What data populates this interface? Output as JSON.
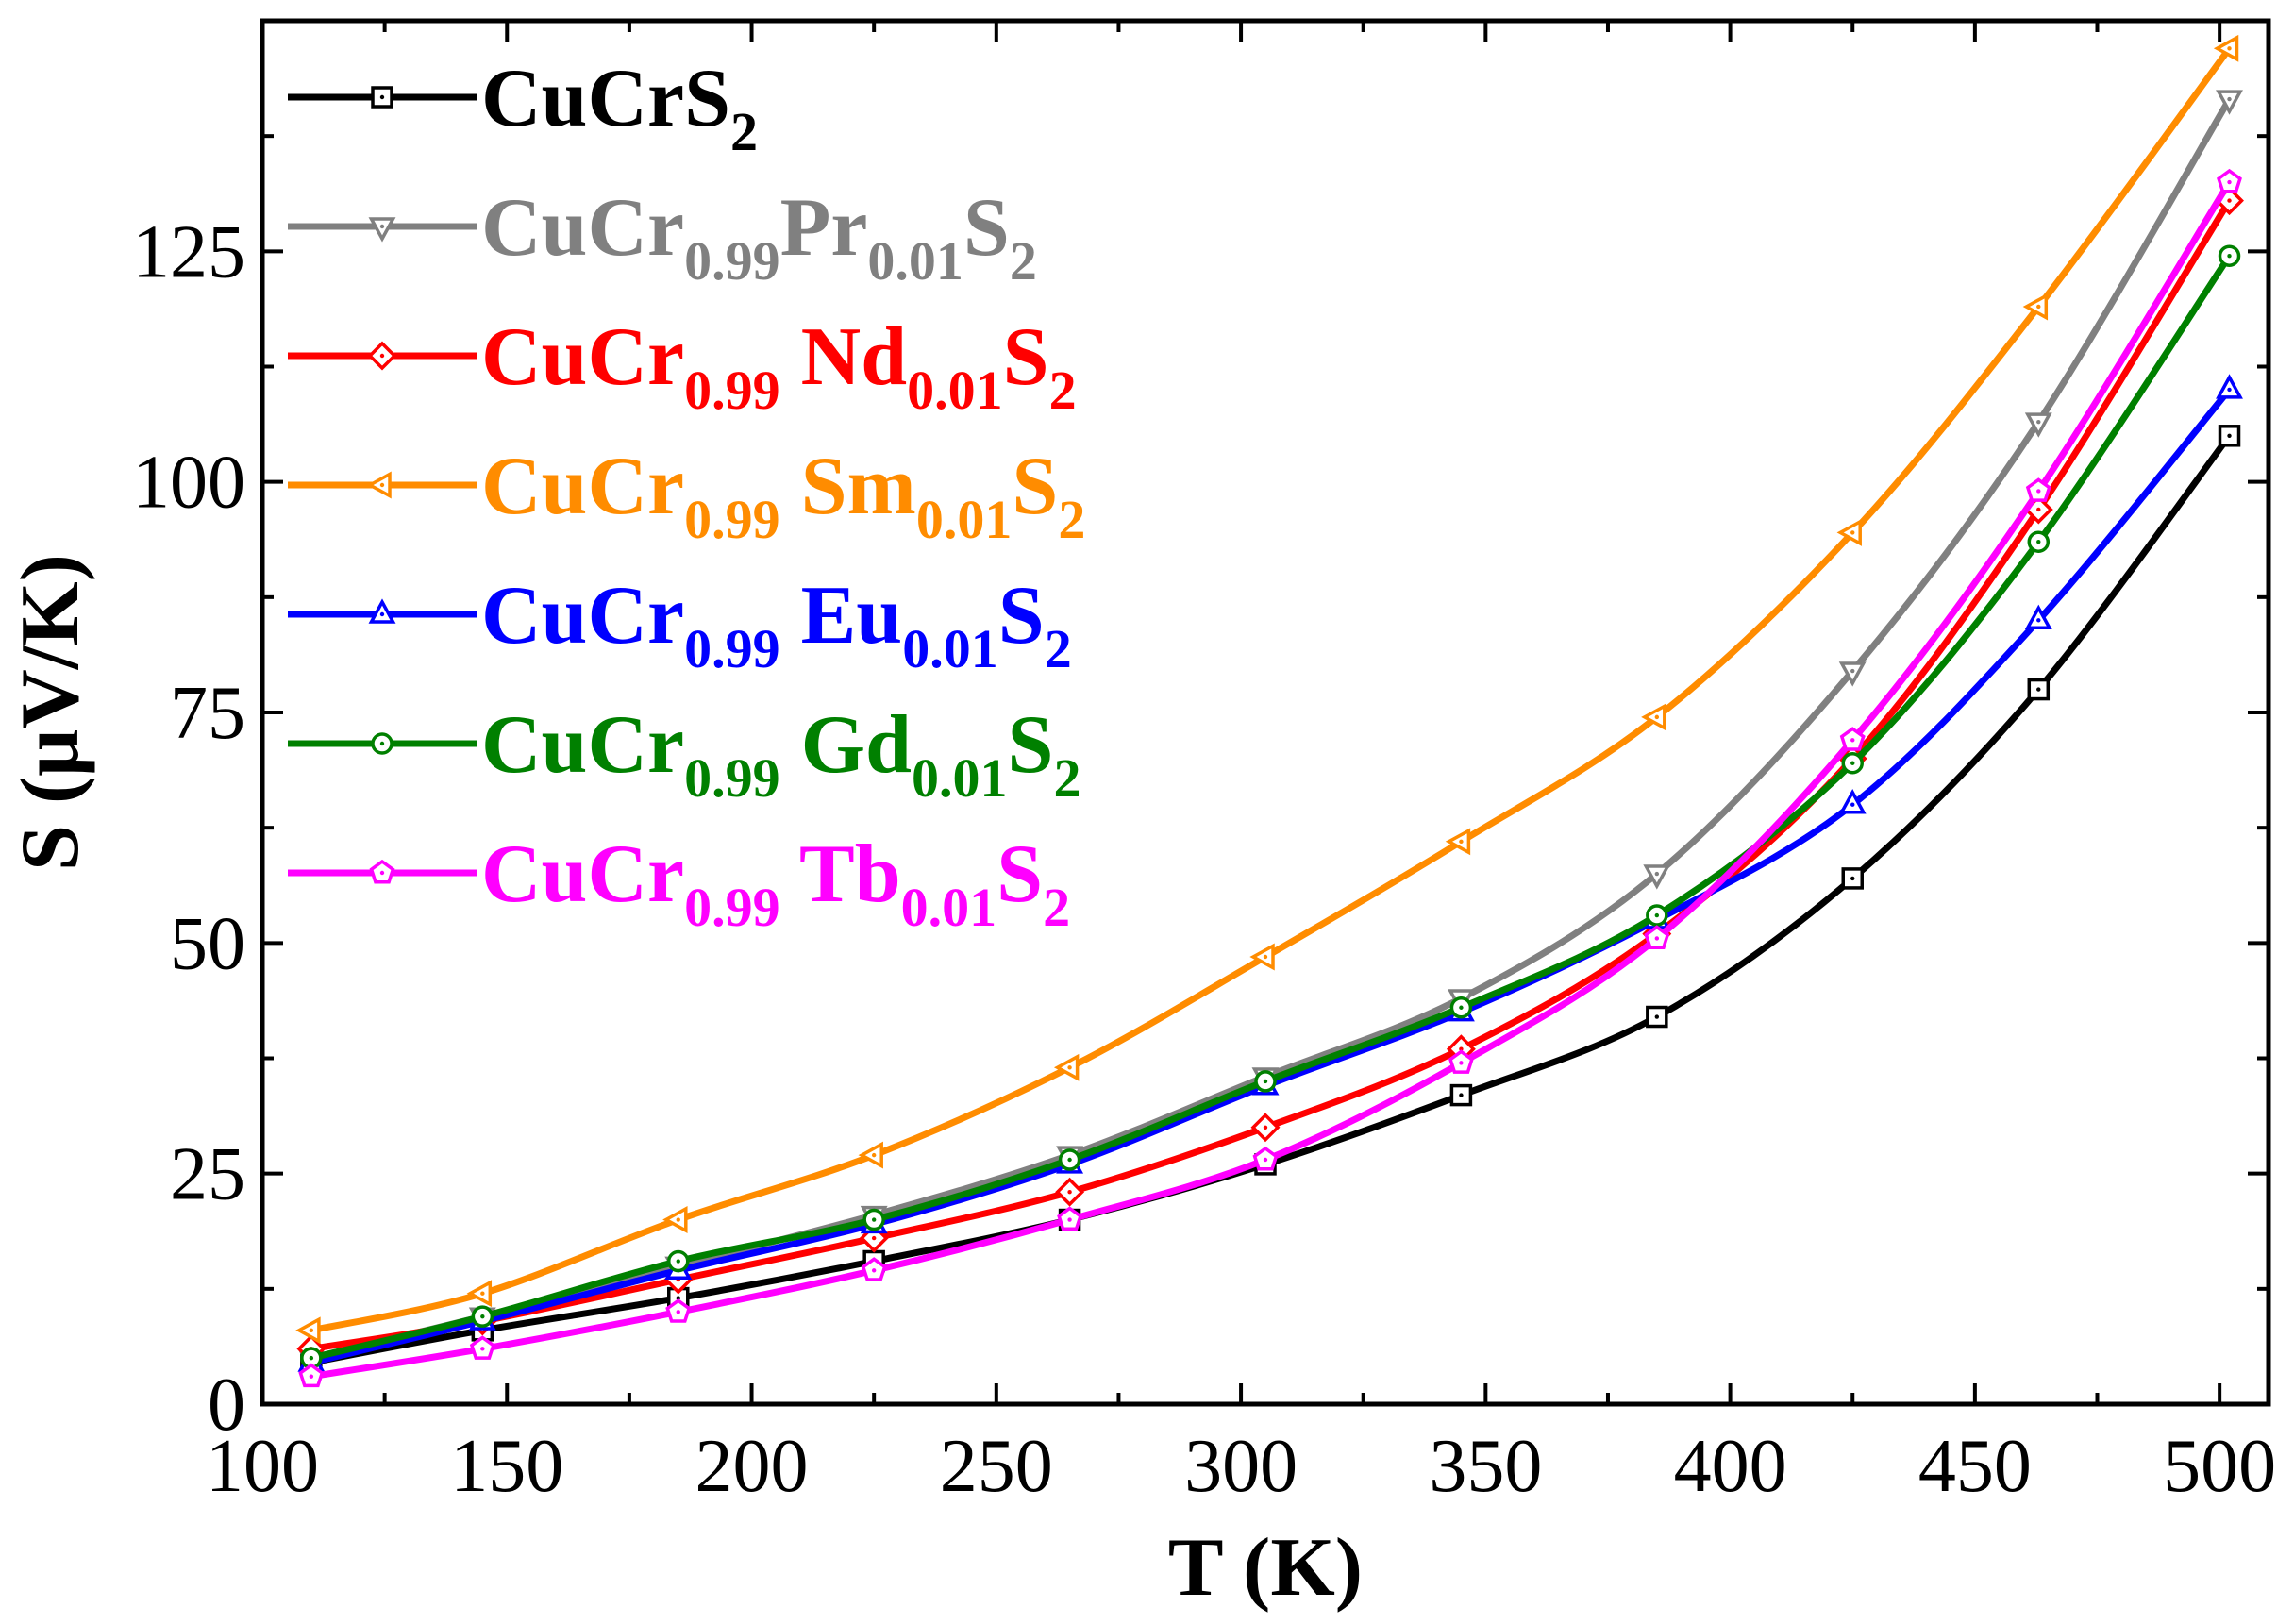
{
  "chart_data": {
    "type": "line",
    "xlabel": "T (K)",
    "ylabel": "S (μV/K)",
    "xlim": [
      100,
      510
    ],
    "ylim": [
      0,
      150
    ],
    "xticks": [
      100,
      150,
      200,
      250,
      300,
      350,
      400,
      450,
      500
    ],
    "xtick_labels": [
      "100",
      "150",
      "200",
      "250",
      "300",
      "350",
      "400",
      "450",
      "500"
    ],
    "yticks": [
      0,
      25,
      50,
      75,
      100,
      125
    ],
    "ytick_labels": [
      "0",
      "25",
      "50",
      "75",
      "100",
      "125"
    ],
    "legend_position": "top-left",
    "grid": false,
    "series": [
      {
        "name": "CuCrS2",
        "legend_parts": [
          [
            "CuCrS",
            "normal"
          ],
          [
            "2",
            "sub"
          ]
        ],
        "color": "#000000",
        "marker": "square",
        "x": [
          110,
          145,
          185,
          225,
          265,
          305,
          345,
          385,
          425,
          463,
          502
        ],
        "y": [
          4.5,
          8,
          11.5,
          15.5,
          20,
          26,
          33.5,
          42,
          57,
          77.5,
          105
        ]
      },
      {
        "name": "CuCr0.99Pr0.01S2",
        "legend_parts": [
          [
            "CuCr",
            "normal"
          ],
          [
            "0.99",
            "sub"
          ],
          [
            "Pr",
            "normal"
          ],
          [
            "0.01",
            "sub"
          ],
          [
            "S",
            "normal"
          ],
          [
            "2",
            "sub"
          ]
        ],
        "color": "#808080",
        "marker": "triangle-down",
        "x": [
          110,
          145,
          185,
          225,
          265,
          305,
          345,
          385,
          425,
          463,
          502
        ],
        "y": [
          5,
          9.5,
          15,
          20.5,
          27,
          35.5,
          44,
          57.5,
          79.5,
          106.5,
          141.5
        ]
      },
      {
        "name": "CuCr0.99 Nd0.01S2",
        "legend_parts": [
          [
            "CuCr",
            "normal"
          ],
          [
            "0.99",
            "sub"
          ],
          [
            " Nd",
            "normal"
          ],
          [
            "0.01",
            "sub"
          ],
          [
            "S",
            "normal"
          ],
          [
            "2",
            "sub"
          ]
        ],
        "color": "#ff0000",
        "marker": "diamond",
        "x": [
          110,
          145,
          185,
          225,
          265,
          305,
          345,
          385,
          425,
          463,
          502
        ],
        "y": [
          6,
          9,
          13.5,
          18,
          23,
          30,
          38.5,
          51,
          70,
          97,
          130.5
        ]
      },
      {
        "name": "CuCr0.99 Sm0.01S2",
        "legend_parts": [
          [
            "CuCr",
            "normal"
          ],
          [
            "0.99",
            "sub"
          ],
          [
            " Sm",
            "normal"
          ],
          [
            "0.01",
            "sub"
          ],
          [
            "S",
            "normal"
          ],
          [
            "2",
            "sub"
          ]
        ],
        "color": "#ff8c00",
        "marker": "triangle-left",
        "x": [
          110,
          145,
          185,
          225,
          265,
          305,
          345,
          385,
          425,
          463,
          502
        ],
        "y": [
          8,
          12,
          20,
          27,
          36.5,
          48.5,
          61,
          74.5,
          94.5,
          119,
          147
        ]
      },
      {
        "name": "CuCr0.99 Eu0.01S2",
        "legend_parts": [
          [
            "CuCr",
            "normal"
          ],
          [
            "0.99",
            "sub"
          ],
          [
            " Eu",
            "normal"
          ],
          [
            "0.01",
            "sub"
          ],
          [
            "S",
            "normal"
          ],
          [
            "2",
            "sub"
          ]
        ],
        "color": "#0000ff",
        "marker": "triangle-up",
        "x": [
          110,
          145,
          185,
          225,
          265,
          305,
          345,
          385,
          425,
          463,
          502
        ],
        "y": [
          4.5,
          9,
          14.5,
          19.5,
          26,
          34.5,
          42.5,
          52.5,
          65,
          85,
          110
        ]
      },
      {
        "name": "CuCr0.99 Gd0.01S2",
        "legend_parts": [
          [
            "CuCr",
            "normal"
          ],
          [
            "0.99",
            "sub"
          ],
          [
            " Gd",
            "normal"
          ],
          [
            "0.01",
            "sub"
          ],
          [
            "S",
            "normal"
          ],
          [
            "2",
            "sub"
          ]
        ],
        "color": "#008000",
        "marker": "circle",
        "x": [
          110,
          145,
          185,
          225,
          265,
          305,
          345,
          385,
          425,
          463,
          502
        ],
        "y": [
          5,
          9.5,
          15.5,
          20,
          26.5,
          35,
          43,
          53,
          69.5,
          93.5,
          124.5
        ]
      },
      {
        "name": "CuCr0.99 Tb0.01S2",
        "legend_parts": [
          [
            "CuCr",
            "normal"
          ],
          [
            "0.99",
            "sub"
          ],
          [
            " Tb",
            "normal"
          ],
          [
            "0.01",
            "sub"
          ],
          [
            "S",
            "normal"
          ],
          [
            "2",
            "sub"
          ]
        ],
        "color": "#ff00ff",
        "marker": "pentagon",
        "x": [
          110,
          145,
          185,
          225,
          265,
          305,
          345,
          385,
          425,
          463,
          502
        ],
        "y": [
          3,
          6,
          10,
          14.5,
          20,
          26.5,
          37,
          50.5,
          72,
          99,
          132.5
        ]
      }
    ]
  }
}
